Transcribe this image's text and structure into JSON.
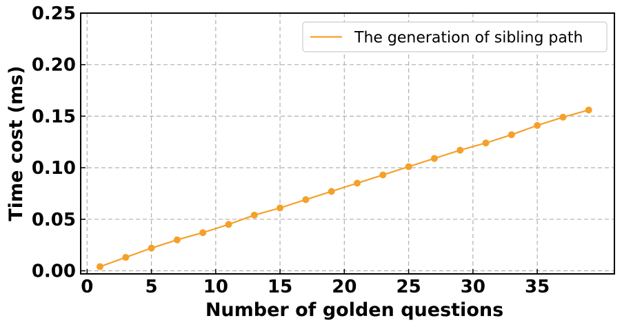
{
  "chart_data": {
    "type": "line",
    "xlabel": "Number of golden questions",
    "ylabel": "Time cost (ms)",
    "xlim": [
      -0.5,
      41
    ],
    "ylim": [
      -0.003,
      0.25
    ],
    "x_ticks": [
      0,
      5,
      10,
      15,
      20,
      25,
      30,
      35
    ],
    "x_tick_labels": [
      "0",
      "5",
      "10",
      "15",
      "20",
      "25",
      "30",
      "35"
    ],
    "y_ticks": [
      0.0,
      0.05,
      0.1,
      0.15,
      0.2,
      0.25
    ],
    "y_tick_labels": [
      "0.00",
      "0.05",
      "0.10",
      "0.15",
      "0.20",
      "0.25"
    ],
    "grid": true,
    "legend_position": "top-right",
    "series": [
      {
        "name": "The generation of sibling path",
        "color": "#f5a02a",
        "marker": "circle",
        "x": [
          1,
          3,
          5,
          7,
          9,
          11,
          13,
          15,
          17,
          19,
          21,
          23,
          25,
          27,
          29,
          31,
          33,
          35,
          37,
          39
        ],
        "y": [
          0.004,
          0.013,
          0.022,
          0.03,
          0.037,
          0.045,
          0.054,
          0.061,
          0.069,
          0.077,
          0.085,
          0.093,
          0.101,
          0.109,
          0.117,
          0.124,
          0.132,
          0.141,
          0.149,
          0.156
        ]
      }
    ]
  }
}
